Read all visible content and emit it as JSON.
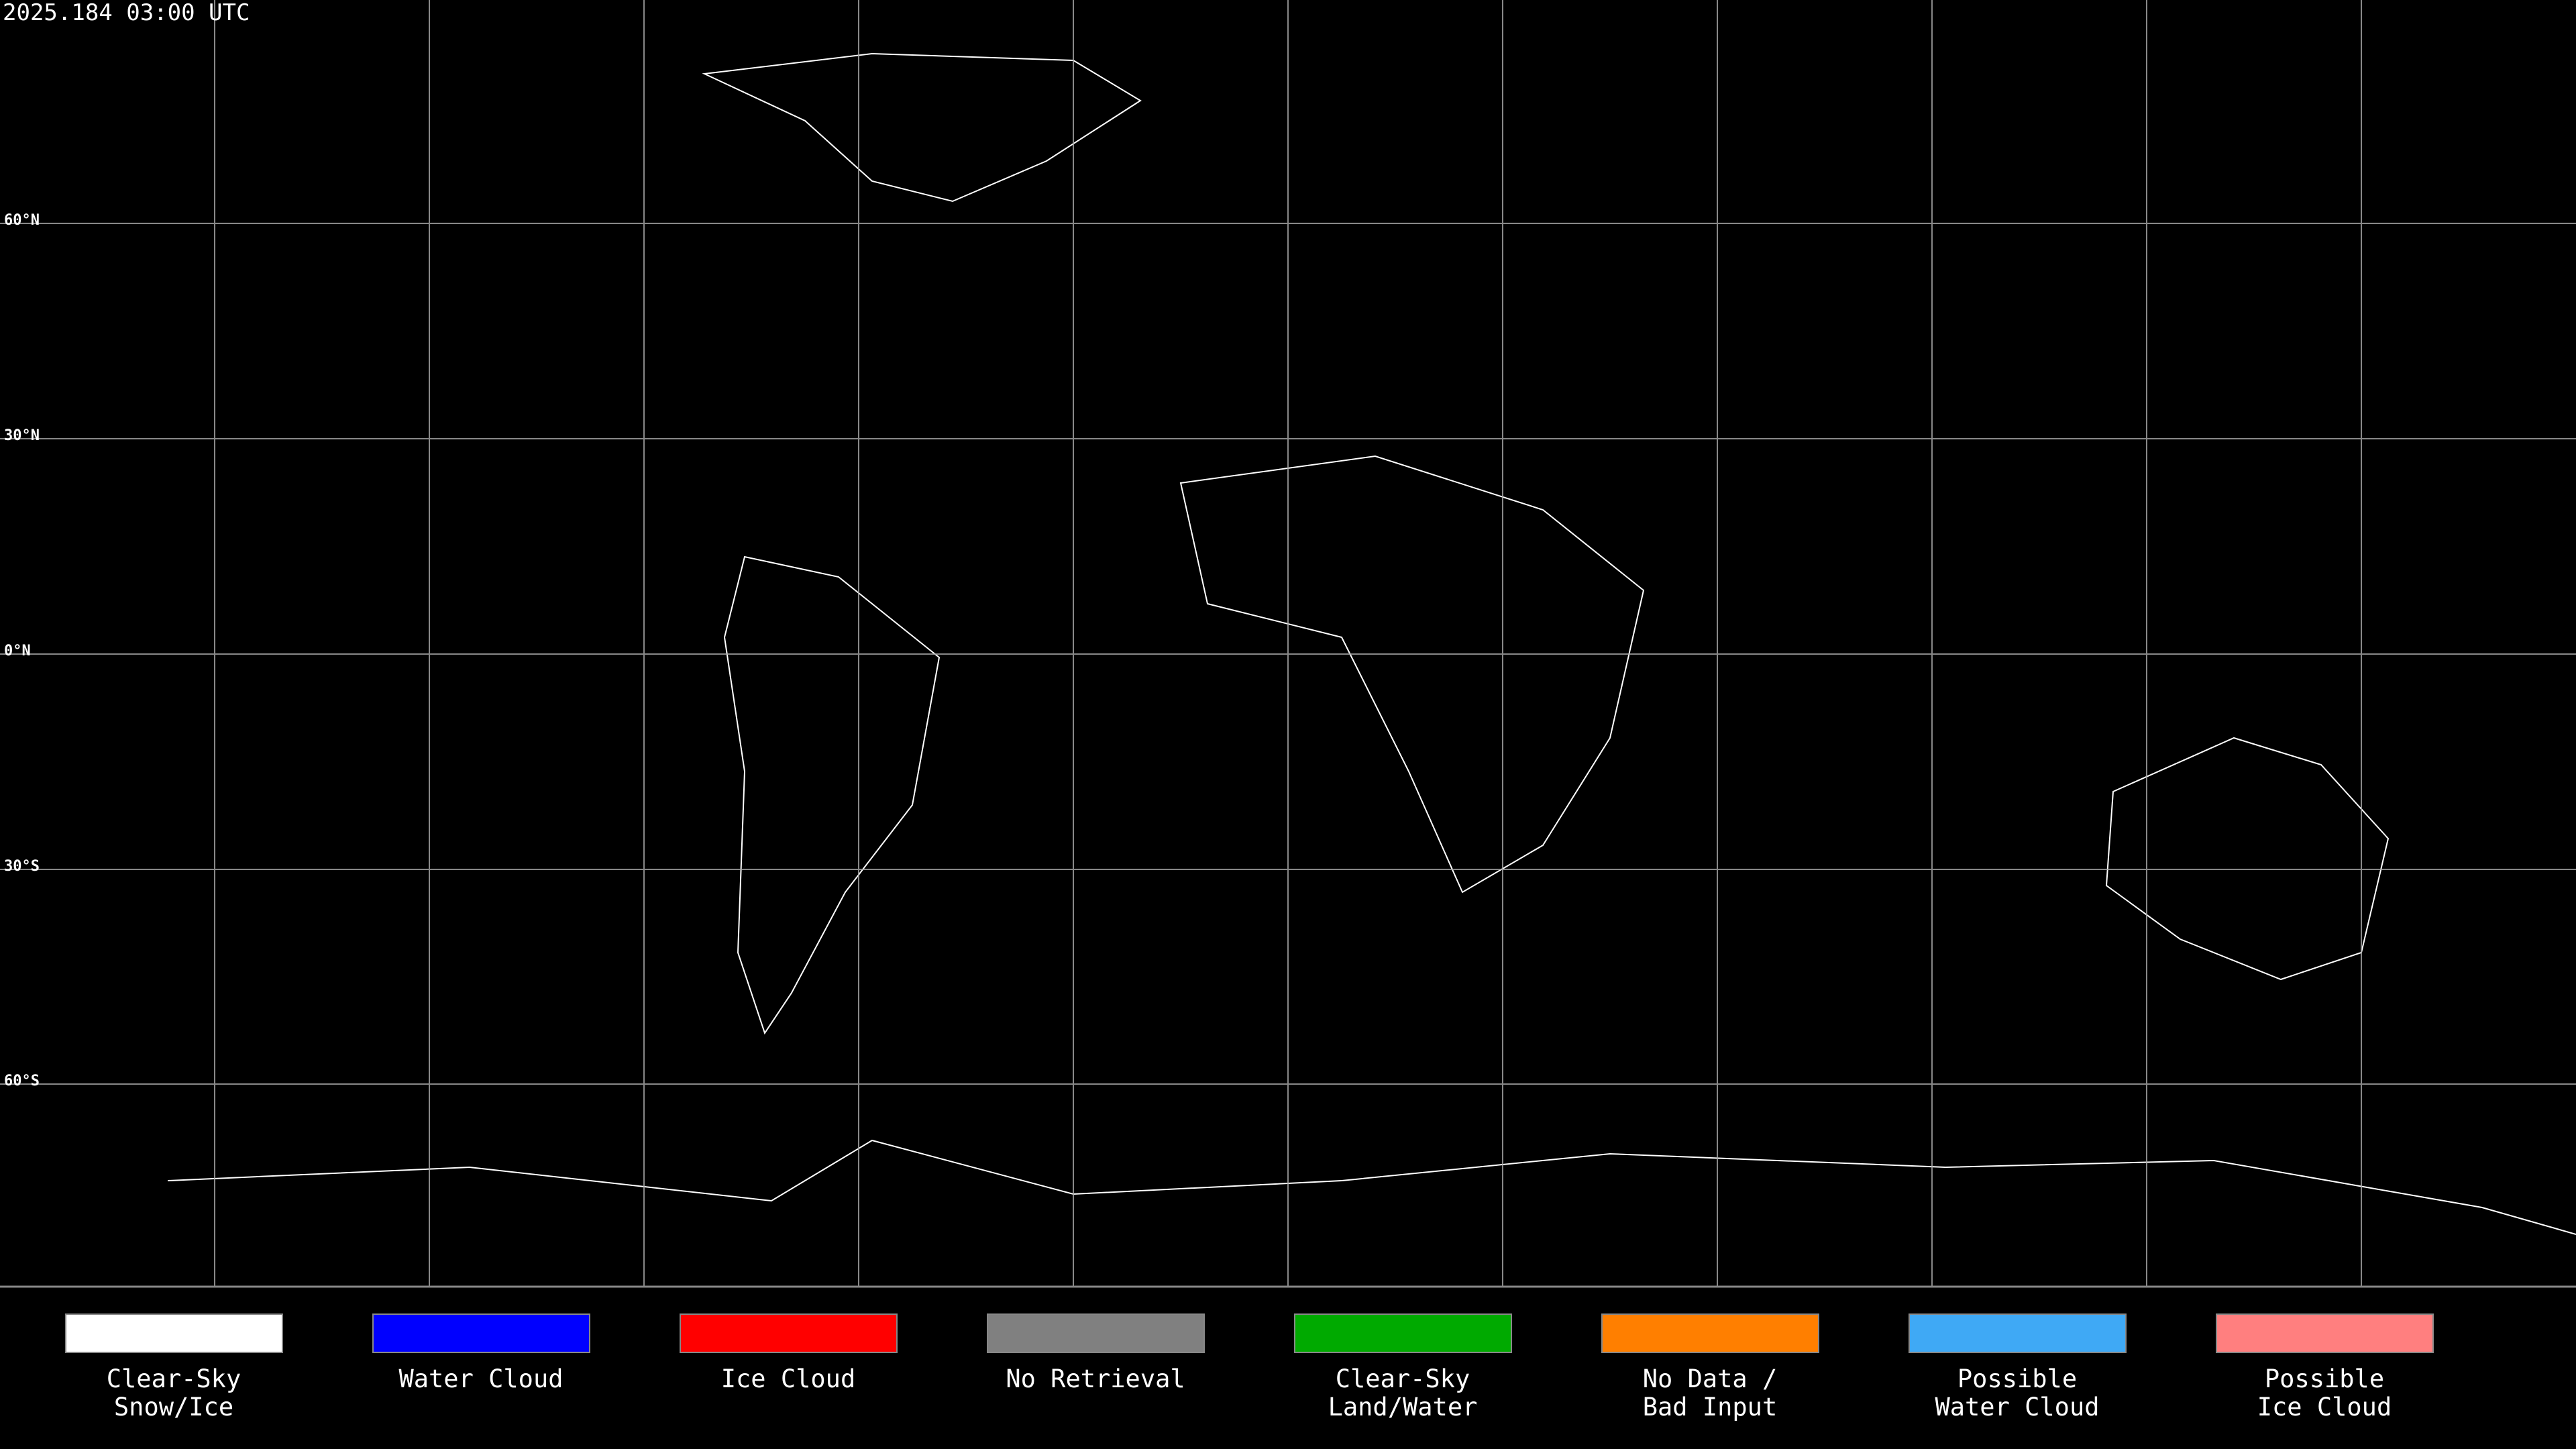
{
  "header": {
    "title": "2025.184 03:00 UTC"
  },
  "latitude_labels": [
    "60°N",
    "30°N",
    "0°N",
    "30°S",
    "60°S"
  ],
  "legend": [
    {
      "color": "#ffffff",
      "lines": [
        "Clear-Sky",
        "Snow/Ice"
      ]
    },
    {
      "color": "#0000ff",
      "lines": [
        "Water Cloud"
      ]
    },
    {
      "color": "#ff0000",
      "lines": [
        "Ice Cloud"
      ]
    },
    {
      "color": "#808080",
      "lines": [
        "No Retrieval"
      ]
    },
    {
      "color": "#00aa00",
      "lines": [
        "Clear-Sky",
        "Land/Water"
      ]
    },
    {
      "color": "#ff7f00",
      "lines": [
        "No Data /",
        "Bad Input"
      ]
    },
    {
      "color": "#3fa9f5",
      "lines": [
        "Possible",
        "Water Cloud"
      ]
    },
    {
      "color": "#ff7f7f",
      "lines": [
        "Possible",
        "Ice Cloud"
      ]
    }
  ]
}
